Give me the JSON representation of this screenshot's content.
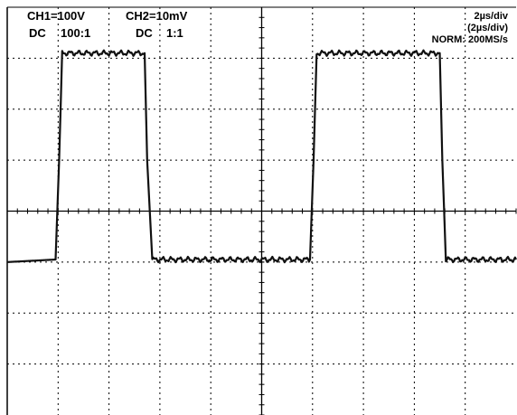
{
  "channels": {
    "ch1_scale": "CH1=100V",
    "ch2_scale": "CH2=10mV",
    "ch1_coupling": "DC",
    "ch1_probe": "100:1",
    "ch2_coupling": "DC",
    "ch2_probe": "1:1"
  },
  "timebase": {
    "main": "2µs/div",
    "delayed": "(2µs/div)",
    "acquisition": "NORM: 200MS/s"
  },
  "chart_data": {
    "type": "line",
    "xlabel": "",
    "ylabel": "",
    "x_unit": "div",
    "y_unit": "div",
    "xlim": [
      -5,
      5
    ],
    "ylim": [
      -4,
      4
    ],
    "grid": true,
    "grid_divisions": {
      "x": 10,
      "y": 8
    },
    "series": [
      {
        "x": [
          -5.0,
          -4.05,
          -3.98,
          -3.92,
          -2.3,
          -2.25,
          -2.15,
          0.95,
          1.02,
          1.08,
          3.5,
          3.55,
          3.62,
          5.0
        ],
        "y": [
          -1.0,
          -0.95,
          1.0,
          3.1,
          3.1,
          1.0,
          -0.95,
          -0.95,
          1.0,
          3.1,
          3.1,
          1.0,
          -0.95,
          -0.95
        ]
      }
    ],
    "colors": {
      "trace": "#111111",
      "grid": "#000000",
      "background": "#ffffff"
    }
  }
}
